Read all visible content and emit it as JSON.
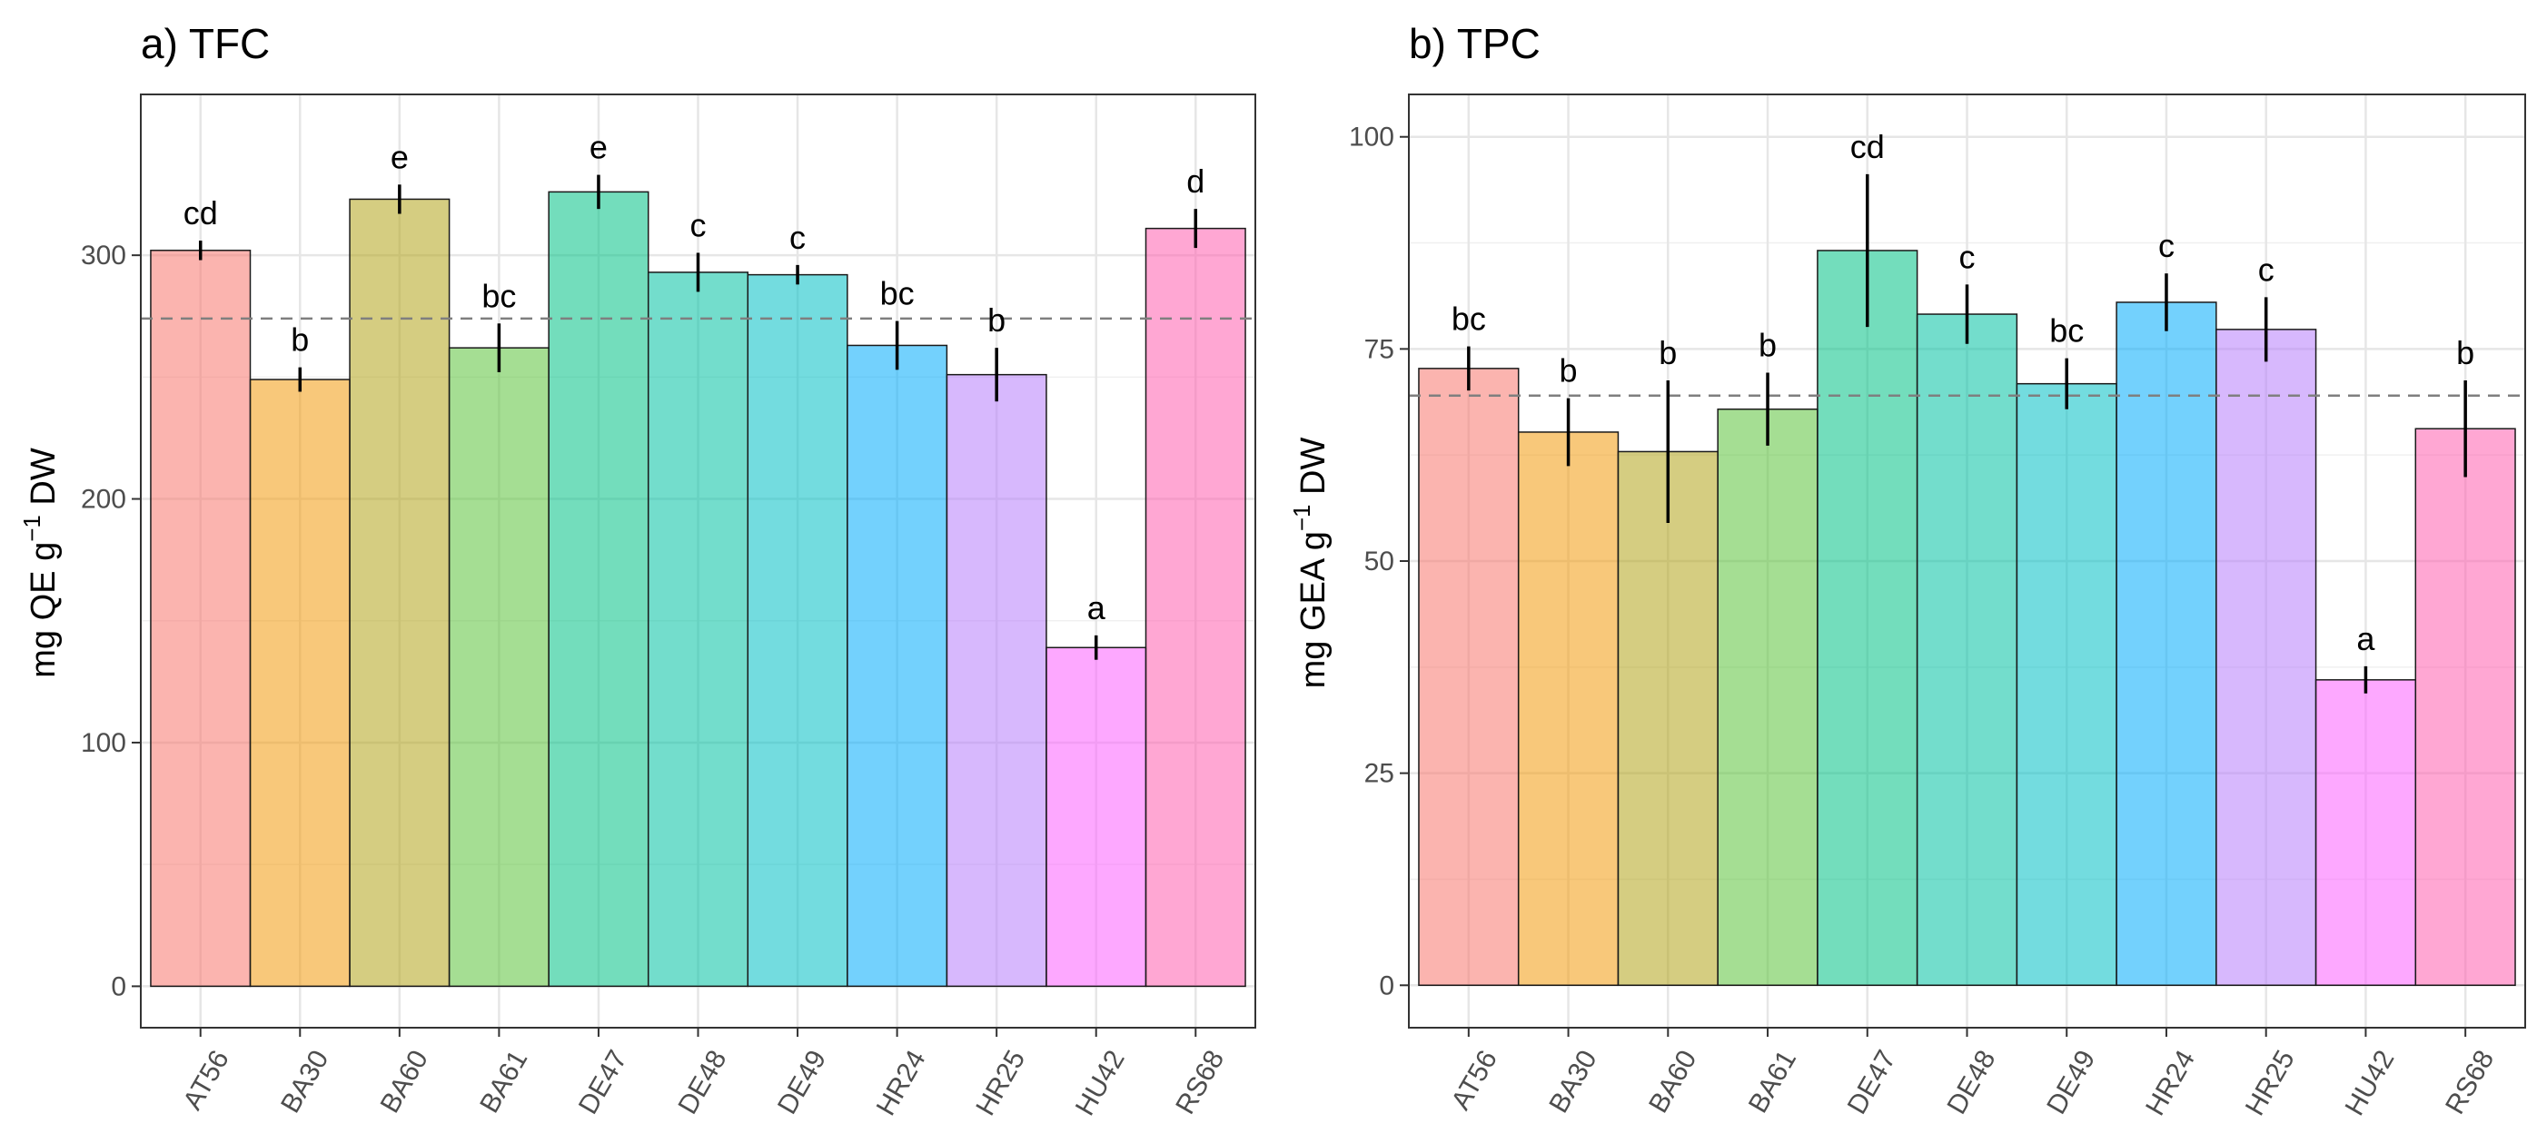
{
  "chart_data": [
    {
      "type": "bar",
      "title": "a) TFC",
      "ylabel": "mg QE g",
      "ylabel_sup": "−1",
      "ylabel_suffix": " DW",
      "xlabel": "",
      "categories": [
        "AT56",
        "BA30",
        "BA60",
        "BA61",
        "DE47",
        "DE48",
        "DE49",
        "HR24",
        "HR25",
        "HU42",
        "RS68"
      ],
      "values": [
        302,
        249,
        323,
        262,
        326,
        293,
        292,
        263,
        251,
        139,
        311
      ],
      "error": [
        4,
        5,
        6,
        10,
        7,
        8,
        4,
        10,
        11,
        5,
        8
      ],
      "significance_letters": [
        "cd",
        "b",
        "e",
        "bc",
        "e",
        "c",
        "c",
        "bc",
        "b",
        "a",
        "d"
      ],
      "reference_line": 274,
      "ylim": [
        -17,
        366
      ],
      "yticks": [
        0,
        100,
        200,
        300
      ],
      "grid": true,
      "legend": "none"
    },
    {
      "type": "bar",
      "title": "b) TPC",
      "ylabel": "mg GEA g",
      "ylabel_sup": "−1",
      "ylabel_suffix": " DW",
      "xlabel": "",
      "categories": [
        "AT56",
        "BA30",
        "BA60",
        "BA61",
        "DE47",
        "DE48",
        "DE49",
        "HR24",
        "HR25",
        "HU42",
        "RS68"
      ],
      "values": [
        72.7,
        65.2,
        62.9,
        67.9,
        86.6,
        79.1,
        70.9,
        80.5,
        77.3,
        36.0,
        65.6
      ],
      "error": [
        2.6,
        4.0,
        8.4,
        4.3,
        9.0,
        3.5,
        3.0,
        3.4,
        3.8,
        1.6,
        5.7
      ],
      "significance_letters": [
        "bc",
        "b",
        "b",
        "b",
        "cd",
        "c",
        "bc",
        "c",
        "c",
        "a",
        "b"
      ],
      "reference_line": 69.5,
      "ylim": [
        -5,
        105
      ],
      "yticks": [
        0,
        25,
        50,
        75,
        100
      ],
      "grid": true,
      "legend": "none"
    }
  ],
  "colors": [
    "#F8766D",
    "#F29B0D",
    "#B2A41A",
    "#5BC23A",
    "#00C185",
    "#00C1A2",
    "#00BFC4",
    "#00ACFC",
    "#B77EFC",
    "#FB61FF",
    "#FF5EAF"
  ]
}
